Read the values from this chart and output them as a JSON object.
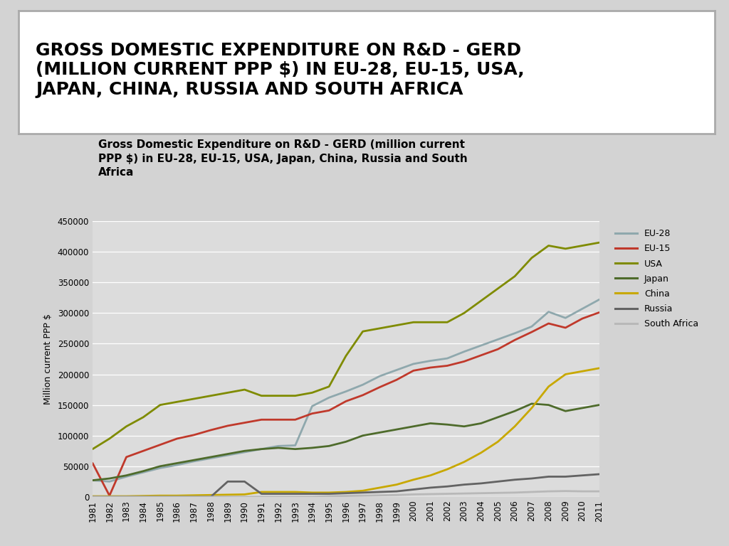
{
  "title_box": "GROSS DOMESTIC EXPENDITURE ON R&D - GERD\n(MILLION CURRENT PPP $) IN EU-28, EU-15, USA,\nJAPAN, CHINA, RUSSIA AND SOUTH AFRICA",
  "chart_title": "Gross Domestic Expenditure on R&D - GERD (million current\nPPP $) in EU-28, EU-15, USA, Japan, China, Russia and South\nAfrica",
  "ylabel": "Million current PPP $",
  "years": [
    1981,
    1982,
    1983,
    1984,
    1985,
    1986,
    1987,
    1988,
    1989,
    1990,
    1991,
    1992,
    1993,
    1994,
    1995,
    1996,
    1997,
    1998,
    1999,
    2000,
    2001,
    2002,
    2003,
    2004,
    2005,
    2006,
    2007,
    2008,
    2009,
    2010,
    2011
  ],
  "series": {
    "EU-28": [
      27000,
      25000,
      33000,
      40000,
      47000,
      52000,
      58000,
      63000,
      68000,
      73000,
      78000,
      83000,
      84000,
      148000,
      162000,
      172000,
      183000,
      197000,
      207000,
      217000,
      222000,
      226000,
      237000,
      247000,
      257000,
      267000,
      278000,
      302000,
      292000,
      307000,
      322000
    ],
    "EU-15": [
      55000,
      2000,
      65000,
      75000,
      85000,
      95000,
      101000,
      109000,
      116000,
      121000,
      126000,
      126000,
      126000,
      136000,
      141000,
      156000,
      166000,
      179000,
      191000,
      206000,
      211000,
      214000,
      221000,
      231000,
      241000,
      256000,
      269000,
      283000,
      276000,
      291000,
      301000
    ],
    "USA": [
      78000,
      95000,
      115000,
      130000,
      150000,
      155000,
      160000,
      165000,
      170000,
      175000,
      165000,
      165000,
      165000,
      170000,
      180000,
      230000,
      270000,
      275000,
      280000,
      285000,
      285000,
      285000,
      300000,
      320000,
      340000,
      360000,
      390000,
      410000,
      405000,
      410000,
      415000
    ],
    "Japan": [
      27000,
      30000,
      35000,
      42000,
      50000,
      55000,
      60000,
      65000,
      70000,
      75000,
      78000,
      80000,
      78000,
      80000,
      83000,
      90000,
      100000,
      105000,
      110000,
      115000,
      120000,
      118000,
      115000,
      120000,
      130000,
      140000,
      152000,
      150000,
      140000,
      145000,
      150000
    ],
    "China": [
      1000,
      1000,
      1000,
      1500,
      2000,
      2000,
      2500,
      3000,
      3500,
      4000,
      8000,
      8000,
      8000,
      7000,
      7000,
      8000,
      10000,
      15000,
      20000,
      28000,
      35000,
      45000,
      57000,
      72000,
      90000,
      115000,
      145000,
      180000,
      200000,
      205000,
      210000
    ],
    "Russia": [
      0,
      0,
      0,
      0,
      0,
      0,
      0,
      0,
      25000,
      25000,
      5000,
      5000,
      5000,
      5000,
      5000,
      6000,
      7000,
      8000,
      9000,
      12000,
      15000,
      17000,
      20000,
      22000,
      25000,
      28000,
      30000,
      33000,
      33000,
      35000,
      37000
    ],
    "South Africa": [
      0,
      0,
      0,
      0,
      0,
      0,
      0,
      0,
      0,
      0,
      0,
      0,
      0,
      0,
      1000,
      1500,
      2000,
      2500,
      3000,
      4000,
      4500,
      5000,
      5500,
      6000,
      6500,
      7000,
      8000,
      9000,
      9500,
      9000,
      9000
    ]
  },
  "colors": {
    "EU-28": "#8FA8AD",
    "EU-15": "#C0392B",
    "USA": "#7F8B00",
    "Japan": "#4E6B2B",
    "China": "#C8A800",
    "Russia": "#636363",
    "South Africa": "#B8B8B8"
  },
  "ylim": [
    0,
    450000
  ],
  "yticks": [
    0,
    50000,
    100000,
    150000,
    200000,
    250000,
    300000,
    350000,
    400000,
    450000
  ],
  "background_color": "#D3D3D3",
  "plot_bg_color": "#DCDCDC",
  "title_box_bg": "#FFFFFF",
  "title_box_edge": "#AAAAAA"
}
